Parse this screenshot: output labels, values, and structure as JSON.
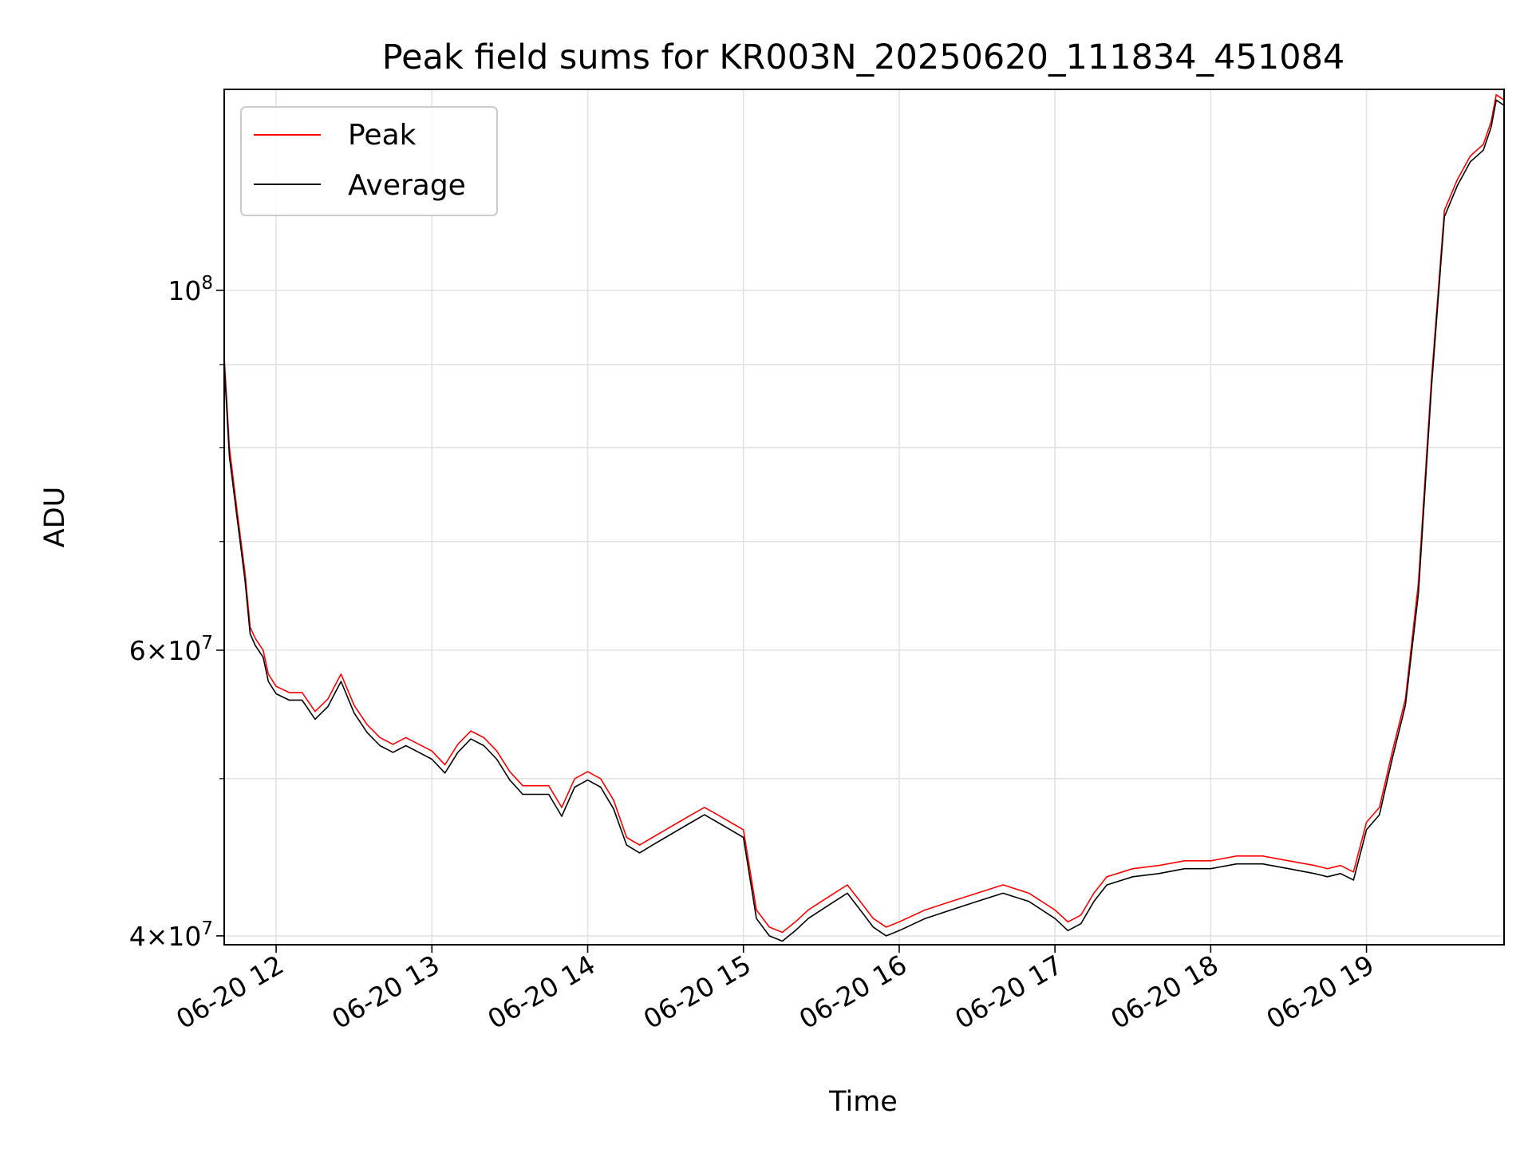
{
  "chart_data": {
    "type": "line",
    "title": "Peak field sums for KR003N_20250620_111834_451084",
    "xlabel": "Time",
    "ylabel": "ADU",
    "yscale": "log",
    "ylim": [
      39500000,
      133000000
    ],
    "xlim": [
      "2025-06-20T11:40",
      "2025-06-20T19:53"
    ],
    "grid": true,
    "legend_position": "top-left",
    "x_ticks": [
      {
        "value": "2025-06-20T12:00",
        "label": "06-20 12"
      },
      {
        "value": "2025-06-20T13:00",
        "label": "06-20 13"
      },
      {
        "value": "2025-06-20T14:00",
        "label": "06-20 14"
      },
      {
        "value": "2025-06-20T15:00",
        "label": "06-20 15"
      },
      {
        "value": "2025-06-20T16:00",
        "label": "06-20 16"
      },
      {
        "value": "2025-06-20T17:00",
        "label": "06-20 17"
      },
      {
        "value": "2025-06-20T18:00",
        "label": "06-20 18"
      },
      {
        "value": "2025-06-20T19:00",
        "label": "06-20 19"
      }
    ],
    "y_major_ticks": [
      {
        "value": 40000000,
        "base": "4×10",
        "exp": "7"
      },
      {
        "value": 60000000,
        "base": "6×10",
        "exp": "7"
      },
      {
        "value": 100000000,
        "base": "10",
        "exp": "8"
      }
    ],
    "y_minor_ticks": [
      50000000,
      70000000,
      80000000,
      90000000
    ],
    "x": [
      "2025-06-20T11:40",
      "2025-06-20T11:42",
      "2025-06-20T11:45",
      "2025-06-20T11:48",
      "2025-06-20T11:50",
      "2025-06-20T11:52",
      "2025-06-20T11:55",
      "2025-06-20T11:57",
      "2025-06-20T12:00",
      "2025-06-20T12:05",
      "2025-06-20T12:10",
      "2025-06-20T12:15",
      "2025-06-20T12:20",
      "2025-06-20T12:25",
      "2025-06-20T12:30",
      "2025-06-20T12:35",
      "2025-06-20T12:40",
      "2025-06-20T12:45",
      "2025-06-20T12:50",
      "2025-06-20T12:55",
      "2025-06-20T13:00",
      "2025-06-20T13:05",
      "2025-06-20T13:10",
      "2025-06-20T13:15",
      "2025-06-20T13:20",
      "2025-06-20T13:25",
      "2025-06-20T13:30",
      "2025-06-20T13:35",
      "2025-06-20T13:40",
      "2025-06-20T13:45",
      "2025-06-20T13:50",
      "2025-06-20T13:55",
      "2025-06-20T14:00",
      "2025-06-20T14:05",
      "2025-06-20T14:10",
      "2025-06-20T14:15",
      "2025-06-20T14:20",
      "2025-06-20T14:25",
      "2025-06-20T14:30",
      "2025-06-20T14:35",
      "2025-06-20T14:40",
      "2025-06-20T14:45",
      "2025-06-20T14:50",
      "2025-06-20T14:55",
      "2025-06-20T15:00",
      "2025-06-20T15:05",
      "2025-06-20T15:10",
      "2025-06-20T15:15",
      "2025-06-20T15:20",
      "2025-06-20T15:25",
      "2025-06-20T15:30",
      "2025-06-20T15:35",
      "2025-06-20T15:40",
      "2025-06-20T15:45",
      "2025-06-20T15:50",
      "2025-06-20T15:55",
      "2025-06-20T16:00",
      "2025-06-20T16:10",
      "2025-06-20T16:20",
      "2025-06-20T16:30",
      "2025-06-20T16:40",
      "2025-06-20T16:50",
      "2025-06-20T17:00",
      "2025-06-20T17:05",
      "2025-06-20T17:10",
      "2025-06-20T17:15",
      "2025-06-20T17:20",
      "2025-06-20T17:30",
      "2025-06-20T17:40",
      "2025-06-20T17:50",
      "2025-06-20T18:00",
      "2025-06-20T18:10",
      "2025-06-20T18:20",
      "2025-06-20T18:30",
      "2025-06-20T18:40",
      "2025-06-20T18:45",
      "2025-06-20T18:50",
      "2025-06-20T18:55",
      "2025-06-20T19:00",
      "2025-06-20T19:05",
      "2025-06-20T19:10",
      "2025-06-20T19:15",
      "2025-06-20T19:20",
      "2025-06-20T19:25",
      "2025-06-20T19:30",
      "2025-06-20T19:35",
      "2025-06-20T19:40",
      "2025-06-20T19:45",
      "2025-06-20T19:48",
      "2025-06-20T19:50",
      "2025-06-20T19:53"
    ],
    "series": [
      {
        "name": "Peak",
        "color": "#ff0000",
        "values": [
          91000000,
          80000000,
          73000000,
          67000000,
          62000000,
          61000000,
          60000000,
          58000000,
          57000000,
          56500000,
          56500000,
          55000000,
          56000000,
          58000000,
          55500000,
          54000000,
          53000000,
          52500000,
          53000000,
          52500000,
          52000000,
          51000000,
          52500000,
          53500000,
          53000000,
          52000000,
          50500000,
          49500000,
          49500000,
          49500000,
          48000000,
          50000000,
          50500000,
          50000000,
          48500000,
          46000000,
          45500000,
          46000000,
          46500000,
          47000000,
          47500000,
          48000000,
          47500000,
          47000000,
          46500000,
          41500000,
          40500000,
          40200000,
          40800000,
          41500000,
          42000000,
          42500000,
          43000000,
          42000000,
          41000000,
          40500000,
          40800000,
          41500000,
          42000000,
          42500000,
          43000000,
          42500000,
          41500000,
          40800000,
          41200000,
          42500000,
          43500000,
          44000000,
          44200000,
          44500000,
          44500000,
          44800000,
          44800000,
          44500000,
          44200000,
          44000000,
          44200000,
          43800000,
          47000000,
          48000000,
          52000000,
          56000000,
          66000000,
          88000000,
          112000000,
          117000000,
          121000000,
          123000000,
          127000000,
          132000000,
          131000000
        ]
      },
      {
        "name": "Average",
        "color": "#000000",
        "values": [
          90000000,
          79000000,
          72300000,
          66300000,
          61400000,
          60400000,
          59400000,
          57400000,
          56400000,
          55900000,
          55900000,
          54400000,
          55400000,
          57400000,
          54900000,
          53400000,
          52400000,
          51900000,
          52400000,
          51900000,
          51400000,
          50400000,
          51900000,
          52900000,
          52400000,
          51400000,
          49900000,
          48900000,
          48900000,
          48900000,
          47400000,
          49400000,
          49900000,
          49400000,
          47900000,
          45500000,
          45000000,
          45500000,
          46000000,
          46500000,
          47000000,
          47500000,
          47000000,
          46500000,
          46000000,
          41000000,
          40000000,
          39700000,
          40300000,
          41000000,
          41500000,
          42000000,
          42500000,
          41500000,
          40500000,
          40000000,
          40300000,
          41000000,
          41500000,
          42000000,
          42500000,
          42000000,
          41000000,
          40300000,
          40700000,
          42000000,
          43000000,
          43500000,
          43700000,
          44000000,
          44000000,
          44300000,
          44300000,
          44000000,
          43700000,
          43500000,
          43700000,
          43300000,
          46500000,
          47500000,
          51500000,
          55500000,
          65000000,
          87000000,
          111000000,
          116000000,
          120000000,
          122000000,
          126000000,
          131000000,
          130000000
        ]
      }
    ]
  }
}
